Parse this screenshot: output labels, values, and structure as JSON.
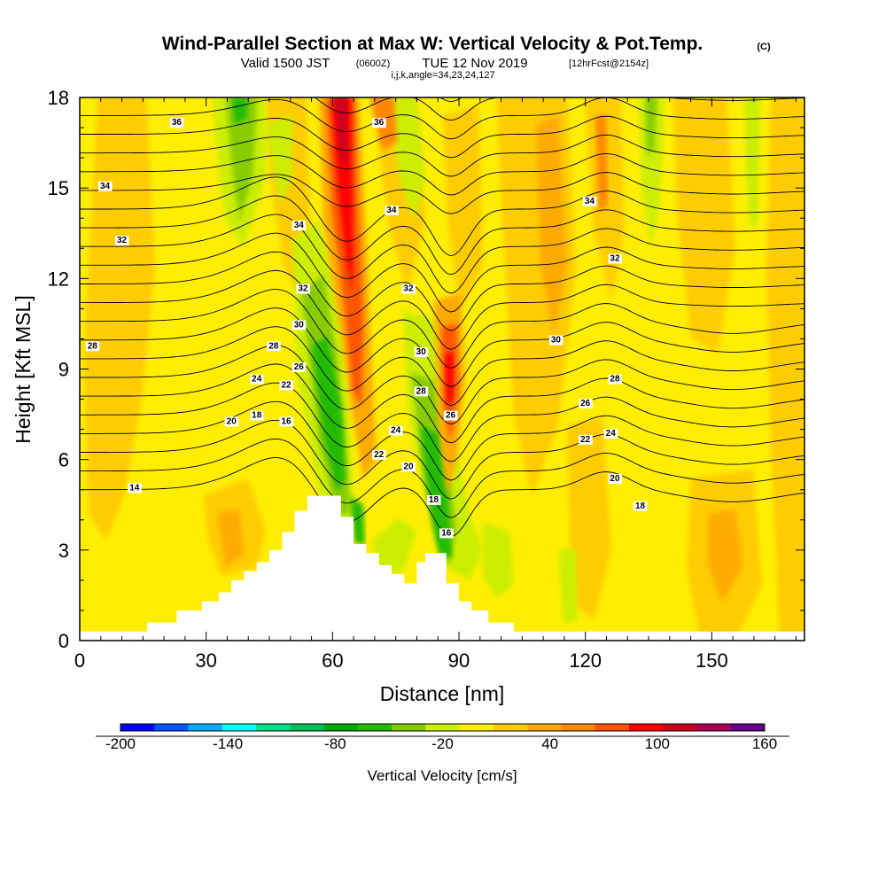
{
  "title": {
    "main": "Wind-Parallel Section at Max W: Vertical Velocity & Pot.Temp.",
    "copyright": "(C)",
    "valid_prefix": "Valid 1500 JST",
    "valid_z": "(0600Z)",
    "valid_date": "TUE 12 Nov 2019",
    "forecast": "[12hrFcst@2154z]",
    "ijk": "i,j,k,angle=34,23,24,127"
  },
  "chart_data": {
    "type": "heatmap",
    "xlabel": "Distance [nm]",
    "ylabel": "Height [Kft MSL]",
    "xlim": [
      0,
      172
    ],
    "ylim": [
      0,
      18
    ],
    "x_ticks": [
      "0",
      "30",
      "60",
      "90",
      "120",
      "150"
    ],
    "y_ticks": [
      "0",
      "3",
      "6",
      "9",
      "12",
      "15",
      "18"
    ],
    "colorbar": {
      "title": "Vertical Velocity [cm/s]",
      "tick_labels": [
        "-200",
        "-140",
        "-80",
        "-20",
        "40",
        "100",
        "160"
      ],
      "colors": [
        "#0000ff",
        "#0055ff",
        "#00aaff",
        "#00ffff",
        "#00e08a",
        "#00c060",
        "#00aa00",
        "#22bb00",
        "#88cc00",
        "#ccee00",
        "#ffee00",
        "#ffcc00",
        "#ffaa00",
        "#ff8800",
        "#ff5500",
        "#ff0000",
        "#cc0022",
        "#aa0055",
        "#660088"
      ]
    },
    "terrain_kft": [
      [
        0,
        0.3
      ],
      [
        16,
        0.3
      ],
      [
        16,
        0.6
      ],
      [
        23,
        0.6
      ],
      [
        23,
        1.0
      ],
      [
        29,
        1.0
      ],
      [
        29,
        1.3
      ],
      [
        33,
        1.3
      ],
      [
        33,
        1.6
      ],
      [
        36,
        1.6
      ],
      [
        36,
        2.0
      ],
      [
        39,
        2.0
      ],
      [
        39,
        2.3
      ],
      [
        42,
        2.3
      ],
      [
        42,
        2.6
      ],
      [
        45,
        2.6
      ],
      [
        45,
        3.0
      ],
      [
        48,
        3.0
      ],
      [
        48,
        3.6
      ],
      [
        51,
        3.6
      ],
      [
        51,
        4.3
      ],
      [
        54,
        4.3
      ],
      [
        54,
        4.8
      ],
      [
        62,
        4.8
      ],
      [
        62,
        4.1
      ],
      [
        65,
        4.1
      ],
      [
        65,
        3.2
      ],
      [
        68,
        3.2
      ],
      [
        68,
        2.9
      ],
      [
        71,
        2.9
      ],
      [
        71,
        2.5
      ],
      [
        74,
        2.5
      ],
      [
        74,
        2.2
      ],
      [
        77,
        2.2
      ],
      [
        77,
        1.9
      ],
      [
        80,
        1.9
      ],
      [
        80,
        2.6
      ],
      [
        82,
        2.6
      ],
      [
        82,
        2.9
      ],
      [
        87,
        2.9
      ],
      [
        87,
        1.9
      ],
      [
        90,
        1.9
      ],
      [
        90,
        1.3
      ],
      [
        93,
        1.3
      ],
      [
        93,
        1.0
      ],
      [
        97,
        1.0
      ],
      [
        97,
        0.6
      ],
      [
        103,
        0.6
      ],
      [
        103,
        0.3
      ],
      [
        172,
        0.3
      ]
    ],
    "theta_contours_c": {
      "levels": [
        14,
        16,
        18,
        20,
        22,
        24,
        26,
        28,
        30,
        32,
        34,
        36
      ],
      "labels": [
        {
          "text": "36",
          "x": 23,
          "y": 17.2
        },
        {
          "text": "36",
          "x": 71,
          "y": 17.2
        },
        {
          "text": "34",
          "x": 6,
          "y": 15.1
        },
        {
          "text": "34",
          "x": 74,
          "y": 14.3
        },
        {
          "text": "34",
          "x": 52,
          "y": 13.8
        },
        {
          "text": "34",
          "x": 121,
          "y": 14.6
        },
        {
          "text": "32",
          "x": 10,
          "y": 13.3
        },
        {
          "text": "32",
          "x": 127,
          "y": 12.7
        },
        {
          "text": "32",
          "x": 53,
          "y": 11.7
        },
        {
          "text": "32",
          "x": 78,
          "y": 11.7
        },
        {
          "text": "30",
          "x": 52,
          "y": 10.5
        },
        {
          "text": "30",
          "x": 81,
          "y": 9.6
        },
        {
          "text": "30",
          "x": 113,
          "y": 10.0
        },
        {
          "text": "28",
          "x": 3,
          "y": 9.8
        },
        {
          "text": "28",
          "x": 46,
          "y": 9.8
        },
        {
          "text": "28",
          "x": 127,
          "y": 8.7
        },
        {
          "text": "26",
          "x": 52,
          "y": 9.1
        },
        {
          "text": "26",
          "x": 120,
          "y": 7.9
        },
        {
          "text": "24",
          "x": 42,
          "y": 8.7
        },
        {
          "text": "24",
          "x": 75,
          "y": 7.0
        },
        {
          "text": "24",
          "x": 126,
          "y": 6.9
        },
        {
          "text": "22",
          "x": 49,
          "y": 8.5
        },
        {
          "text": "22",
          "x": 71,
          "y": 6.2
        },
        {
          "text": "22",
          "x": 120,
          "y": 6.7
        },
        {
          "text": "20",
          "x": 36,
          "y": 7.3
        },
        {
          "text": "20",
          "x": 78,
          "y": 5.8
        },
        {
          "text": "20",
          "x": 127,
          "y": 5.4
        },
        {
          "text": "18",
          "x": 42,
          "y": 7.5
        },
        {
          "text": "18",
          "x": 84,
          "y": 4.7
        },
        {
          "text": "18",
          "x": 133,
          "y": 4.5
        },
        {
          "text": "16",
          "x": 49,
          "y": 7.3
        },
        {
          "text": "16",
          "x": 87,
          "y": 3.6
        },
        {
          "text": "14",
          "x": 13,
          "y": 5.1
        },
        {
          "text": "26",
          "x": 88,
          "y": 7.5
        },
        {
          "text": "28",
          "x": 81,
          "y": 8.3
        }
      ]
    }
  }
}
